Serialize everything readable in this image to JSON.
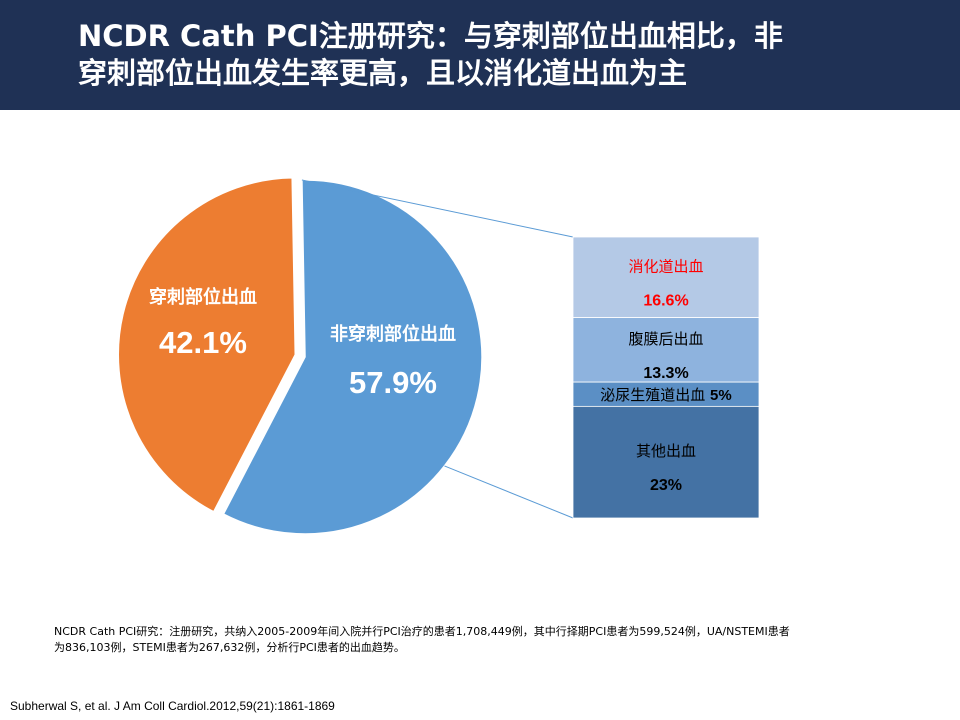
{
  "title": {
    "line1": "NCDR Cath PCI注册研究：与穿刺部位出血相比，非",
    "line2": "穿刺部位出血发生率更高，且以消化道出血为主"
  },
  "chart_data": {
    "type": "pie",
    "pie": {
      "slices": [
        {
          "label": "非穿刺部位出血",
          "value": 57.9,
          "value_label": "57.9%",
          "color": "#5b9bd5",
          "label_color": "#ffffff"
        },
        {
          "label": "穿刺部位出血",
          "value": 42.1,
          "value_label": "42.1%",
          "color": "#ed7d31",
          "label_color": "#ffffff"
        }
      ]
    },
    "breakdown": {
      "parent": "非穿刺部位出血",
      "segments": [
        {
          "label": "消化道出血",
          "value": 16.6,
          "value_label": "16.6%",
          "color": "#b4c9e6",
          "label_color": "#ff0000",
          "value_color": "#ff0000"
        },
        {
          "label": "腹膜后出血",
          "value": 13.3,
          "value_label": "13.3%",
          "color": "#8eb3de",
          "label_color": "#000000",
          "value_color": "#000000"
        },
        {
          "label": "泌尿生殖道出血",
          "value": 5,
          "value_label": "5%",
          "color": "#5b8fc5",
          "label_color": "#000000",
          "value_color": "#000000"
        },
        {
          "label": "其他出血",
          "value": 23,
          "value_label": "23%",
          "color": "#4472a4",
          "label_color": "#000000",
          "value_color": "#000000"
        }
      ]
    }
  },
  "footnote": {
    "line1": "NCDR Cath PCI研究：注册研究，共纳入2005-2009年间入院并行PCI治疗的患者1,708,449例，其中行择期PCI患者为599,524例，UA/NSTEMI患者",
    "line2": "为836,103例，STEMI患者为267,632例，分析行PCI患者的出血趋势。"
  },
  "citation": "Subherwal S, et al.  J Am Coll Cardiol.2012,59(21):1861-1869"
}
